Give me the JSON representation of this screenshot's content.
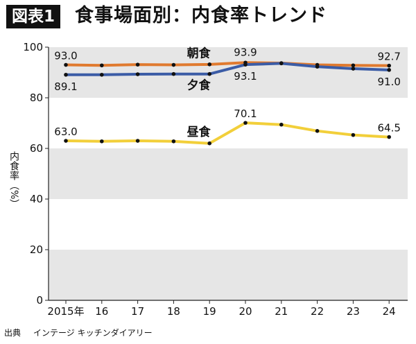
{
  "header": {
    "badge": "図表1",
    "title": "食事場面別：内食率トレンド"
  },
  "source": {
    "label": "出典",
    "text": "インテージ キッチンダイアリー"
  },
  "chart_data": {
    "type": "line",
    "title": "食事場面別：内食率トレンド",
    "ylabel": "内食率（%）",
    "xlabel": "",
    "ylim": [
      0,
      100
    ],
    "yticks": [
      0,
      20,
      40,
      60,
      80,
      100
    ],
    "x": [
      2015,
      2016,
      2017,
      2018,
      2019,
      2020,
      2021,
      2022,
      2023,
      2024
    ],
    "xtick_labels": [
      "2015年",
      "16",
      "17",
      "18",
      "19",
      "20",
      "21",
      "22",
      "23",
      "24"
    ],
    "grid": "alternating horizontal bands",
    "series": [
      {
        "name": "朝食",
        "color": "#e07a2f",
        "values": [
          93.0,
          92.8,
          93.1,
          93.0,
          93.2,
          93.9,
          93.7,
          93.0,
          92.8,
          92.7
        ],
        "labels": [
          {
            "index": 0,
            "text": "93.0"
          },
          {
            "index": 5,
            "text": "93.9"
          },
          {
            "index": 9,
            "text": "92.7"
          }
        ]
      },
      {
        "name": "夕食",
        "color": "#3b5ca6",
        "values": [
          89.1,
          89.1,
          89.3,
          89.4,
          89.4,
          93.1,
          93.6,
          92.3,
          91.5,
          91.0
        ],
        "labels": [
          {
            "index": 0,
            "text": "89.1"
          },
          {
            "index": 5,
            "text": "93.1"
          },
          {
            "index": 9,
            "text": "91.0"
          }
        ]
      },
      {
        "name": "昼食",
        "color": "#f2cf3a",
        "values": [
          63.0,
          62.8,
          63.0,
          62.8,
          62.0,
          70.1,
          69.4,
          66.9,
          65.3,
          64.5
        ],
        "labels": [
          {
            "index": 0,
            "text": "63.0"
          },
          {
            "index": 5,
            "text": "70.1"
          },
          {
            "index": 9,
            "text": "64.5"
          }
        ]
      }
    ]
  }
}
